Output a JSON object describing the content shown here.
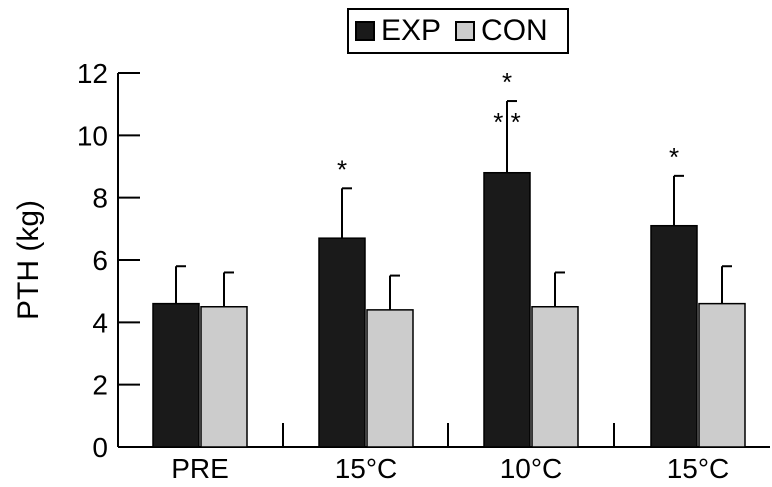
{
  "chart_data": {
    "type": "bar",
    "title": "",
    "xlabel": "",
    "ylabel": "PTH (kg)",
    "ylim": [
      0,
      12
    ],
    "yticks": [
      0,
      2,
      4,
      6,
      8,
      10,
      12
    ],
    "categories": [
      "PRE",
      "15°C",
      "10°C",
      "15°C"
    ],
    "legend_position": "top-center",
    "grid": false,
    "series": [
      {
        "name": "EXP",
        "color": "#1a1a1a",
        "values": [
          4.6,
          6.7,
          8.8,
          7.1
        ],
        "errors": [
          1.2,
          1.6,
          2.3,
          1.6
        ],
        "annotations": [
          "",
          "*",
          "*\n* *",
          "*"
        ]
      },
      {
        "name": "CON",
        "color": "#cccccc",
        "values": [
          4.5,
          4.4,
          4.5,
          4.6
        ],
        "errors": [
          1.1,
          1.1,
          1.1,
          1.2
        ],
        "annotations": [
          "",
          "",
          "",
          ""
        ]
      }
    ]
  }
}
